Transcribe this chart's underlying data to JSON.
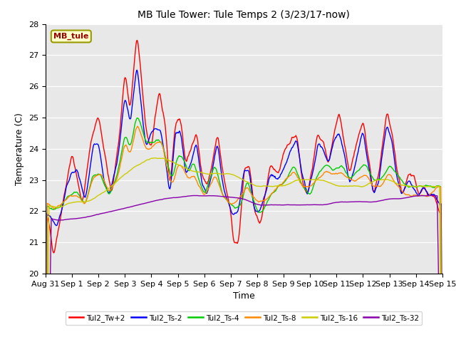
{
  "title": "MB Tule Tower: Tule Temps 2 (3/23/17-now)",
  "xlabel": "Time",
  "ylabel": "Temperature (C)",
  "ylim": [
    20.0,
    28.0
  ],
  "yticks": [
    20.0,
    21.0,
    22.0,
    23.0,
    24.0,
    25.0,
    26.0,
    27.0,
    28.0
  ],
  "bg_color": "#e8e8e8",
  "fig_color": "#ffffff",
  "watermark_text": "MB_tule",
  "watermark_bg": "#ffffcc",
  "watermark_border": "#999900",
  "watermark_text_color": "#990000",
  "legend_entries": [
    "Tul2_Tw+2",
    "Tul2_Ts-2",
    "Tul2_Ts-4",
    "Tul2_Ts-8",
    "Tul2_Ts-16",
    "Tul2_Ts-32"
  ],
  "line_colors": [
    "#ff0000",
    "#0000ff",
    "#00cc00",
    "#ff8800",
    "#cccc00",
    "#8800aa"
  ],
  "line_width": 1.0,
  "xtick_labels": [
    "Aug 31",
    "Sep 1",
    "Sep 2",
    "Sep 3",
    "Sep 4",
    "Sep 5",
    "Sep 6",
    "Sep 7",
    "Sep 8",
    "Sep 9",
    "Sep 10",
    "Sep 11",
    "Sep 12",
    "Sep 13",
    "Sep 14",
    "Sep 15"
  ],
  "num_points": 700
}
